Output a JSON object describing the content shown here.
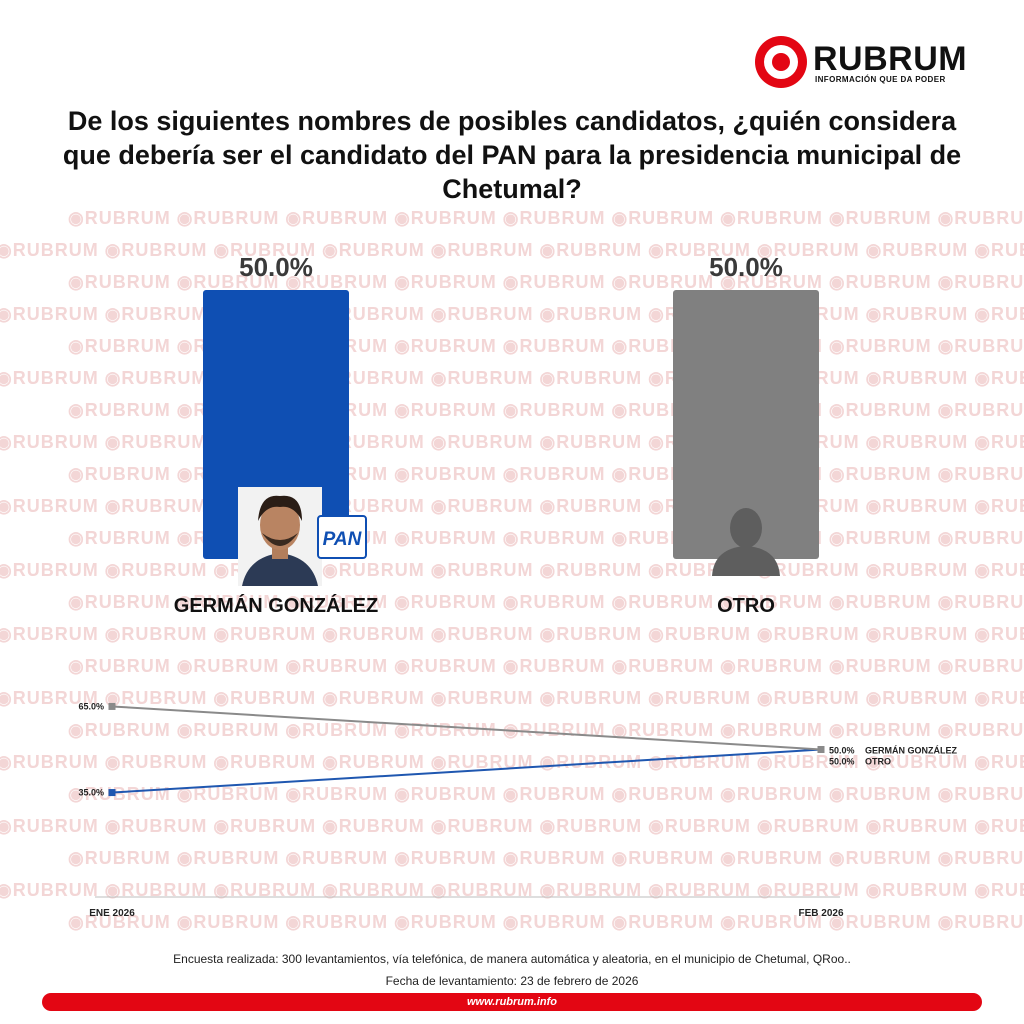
{
  "brand": {
    "name": "RUBRUM",
    "tagline": "INFORMACIÓN QUE DA PODER",
    "watermark_text": "RUBRUM",
    "color": "#e30613"
  },
  "question": "De los siguientes nombres de posibles candidatos, ¿quién considera que debería ser el candidato del PAN para la presidencia municipal de Chetumal?",
  "chart_data": [
    {
      "type": "bar",
      "categories": [
        "GERMÁN GONZÁLEZ",
        "OTRO"
      ],
      "values": [
        50.0,
        50.0
      ],
      "value_labels": [
        "50.0%",
        "50.0%"
      ],
      "colors": [
        "#0f4fb3",
        "#808080"
      ],
      "ylim": [
        0,
        100
      ],
      "party_logo_text": "PAN"
    },
    {
      "type": "line",
      "x": [
        "ENE 2026",
        "FEB 2026"
      ],
      "series": [
        {
          "name": "GERMÁN GONZÁLEZ",
          "values": [
            35.0,
            50.0
          ],
          "labels": [
            "35.0%",
            "50.0%"
          ],
          "color": "#1f57b0"
        },
        {
          "name": "OTRO",
          "values": [
            65.0,
            50.0
          ],
          "labels": [
            "65.0%",
            "50.0%"
          ],
          "color": "#8a8a8a"
        }
      ],
      "ylim": [
        0,
        100
      ],
      "grid": false
    }
  ],
  "footnote": {
    "methodology": "Encuesta realizada: 300 levantamientos, vía telefónica, de manera automática y aleatoria, en el municipio de Chetumal, QRoo..",
    "date": "Fecha de levantamiento: 23 de febrero de 2026",
    "url": "www.rubrum.info"
  }
}
